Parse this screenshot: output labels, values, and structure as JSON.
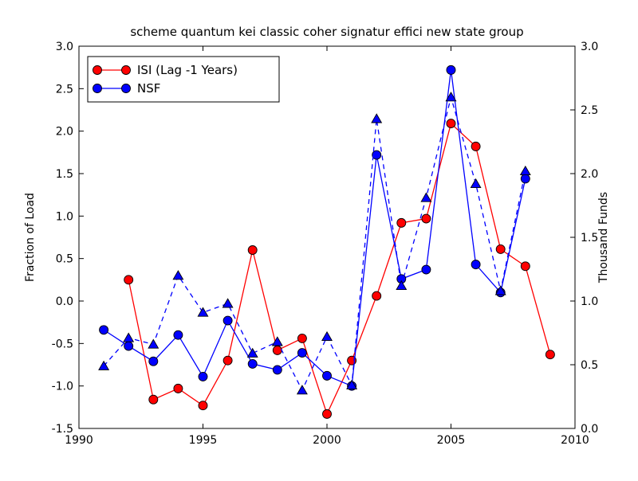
{
  "figure": {
    "title": "scheme quantum kei classic coher signatur effici new state group",
    "background": "#ffffff"
  },
  "chart_data": {
    "type": "line",
    "title": "scheme quantum kei classic coher signatur effici new state group",
    "xlabel": "",
    "ylabel_left": "Fraction of Load",
    "ylabel_right": "Thousand Funds",
    "xlim": [
      1990,
      2010
    ],
    "ylim_left": [
      -1.5,
      3.0
    ],
    "ylim_right": [
      0.0,
      3.0
    ],
    "grid": false,
    "x_tick_values": [
      1990,
      1995,
      2000,
      2005,
      2010
    ],
    "x_tick_labels": [
      "1990",
      "1995",
      "2000",
      "2005",
      "2010"
    ],
    "y_tick_values_left": [
      3.0,
      2.5,
      2.0,
      1.5,
      1.0,
      0.5,
      0.0,
      -0.5,
      -1.0,
      -1.5
    ],
    "y_tick_labels_left": [
      "3.0",
      "2.5",
      "2.0",
      "1.5",
      "1.0",
      "0.5",
      "0.0",
      "-0.5",
      "-1.0",
      "-1.5"
    ],
    "y_tick_values_right": [
      3.0,
      2.5,
      2.0,
      1.5,
      1.0,
      0.5,
      0.0
    ],
    "y_tick_labels_right": [
      "3.0",
      "2.5",
      "2.0",
      "1.5",
      "1.0",
      "0.5",
      "0.0"
    ],
    "legend": {
      "position": "upper-left",
      "entries": [
        {
          "label": "ISI (Lag -1 Years)",
          "color": "#ff0000",
          "marker": "circle",
          "line": "solid"
        },
        {
          "label": "NSF",
          "color": "#0000ff",
          "marker": "circle",
          "line": "solid"
        }
      ]
    },
    "colors": {
      "red": "#ff0000",
      "blue": "#0000ff",
      "axis": "#000000",
      "marker_edge": "#000000",
      "background": "#ffffff"
    },
    "series": [
      {
        "id": "isi",
        "name": "ISI (Lag -1 Years)",
        "axis": "left",
        "color": "#ff0000",
        "line": "solid",
        "marker": "circle",
        "x": [
          1992,
          1993,
          1994,
          1995,
          1996,
          1997,
          1998,
          1999,
          2000,
          2001,
          2002,
          2003,
          2004,
          2005,
          2006,
          2007,
          2008,
          2009
        ],
        "y": [
          0.25,
          -1.16,
          -1.03,
          -1.23,
          -0.7,
          0.6,
          -0.58,
          -0.44,
          -1.33,
          -0.7,
          0.06,
          0.92,
          0.97,
          2.09,
          1.82,
          0.61,
          0.41,
          -0.63
        ]
      },
      {
        "id": "nsf",
        "name": "NSF",
        "axis": "left",
        "color": "#0000ff",
        "line": "solid",
        "marker": "circle",
        "x": [
          1991,
          1992,
          1993,
          1994,
          1995,
          1996,
          1997,
          1998,
          1999,
          2000,
          2001,
          2002,
          2003,
          2004,
          2005,
          2006,
          2007,
          2008
        ],
        "y": [
          -0.34,
          -0.53,
          -0.71,
          -0.4,
          -0.89,
          -0.23,
          -0.74,
          -0.81,
          -0.61,
          -0.88,
          -1.0,
          1.72,
          0.26,
          0.37,
          2.72,
          0.43,
          0.1,
          1.44
        ]
      },
      {
        "id": "unlabeled-dashed",
        "name": "",
        "axis": "right",
        "color": "#0000ff",
        "line": "dashed",
        "marker": "triangle-up",
        "x": [
          1991,
          1992,
          1993,
          1994,
          1995,
          1996,
          1997,
          1998,
          1999,
          2000,
          2001,
          2002,
          2003,
          2004,
          2005,
          2006,
          2007,
          2008
        ],
        "y": [
          0.49,
          0.71,
          0.66,
          1.2,
          0.91,
          0.98,
          0.59,
          0.68,
          0.3,
          0.72,
          0.34,
          2.43,
          1.12,
          1.81,
          2.6,
          1.92,
          1.08,
          2.02
        ]
      }
    ]
  }
}
